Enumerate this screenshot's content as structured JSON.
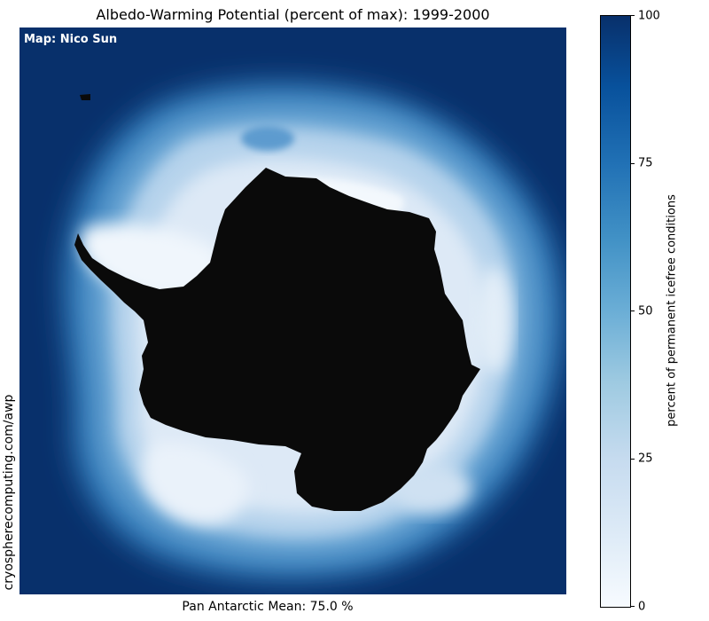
{
  "title": "Albedo-Warming Potential (percent of max): 1999-2000",
  "credit": "Map: Nico Sun",
  "source": "cryospherecomputing.com/awp",
  "footer": "Pan Antarctic Mean: 75.0 %",
  "colorbar": {
    "label": "percent of permanent icefree conditions",
    "ticks": [
      "0",
      "25",
      "50",
      "75",
      "100"
    ],
    "min": 0,
    "max": 100,
    "colormap": "Blues"
  },
  "colors": {
    "open_ocean": "#08306b",
    "land_mask": "#0a0a0a",
    "ice_max": "#f7fbff"
  }
}
